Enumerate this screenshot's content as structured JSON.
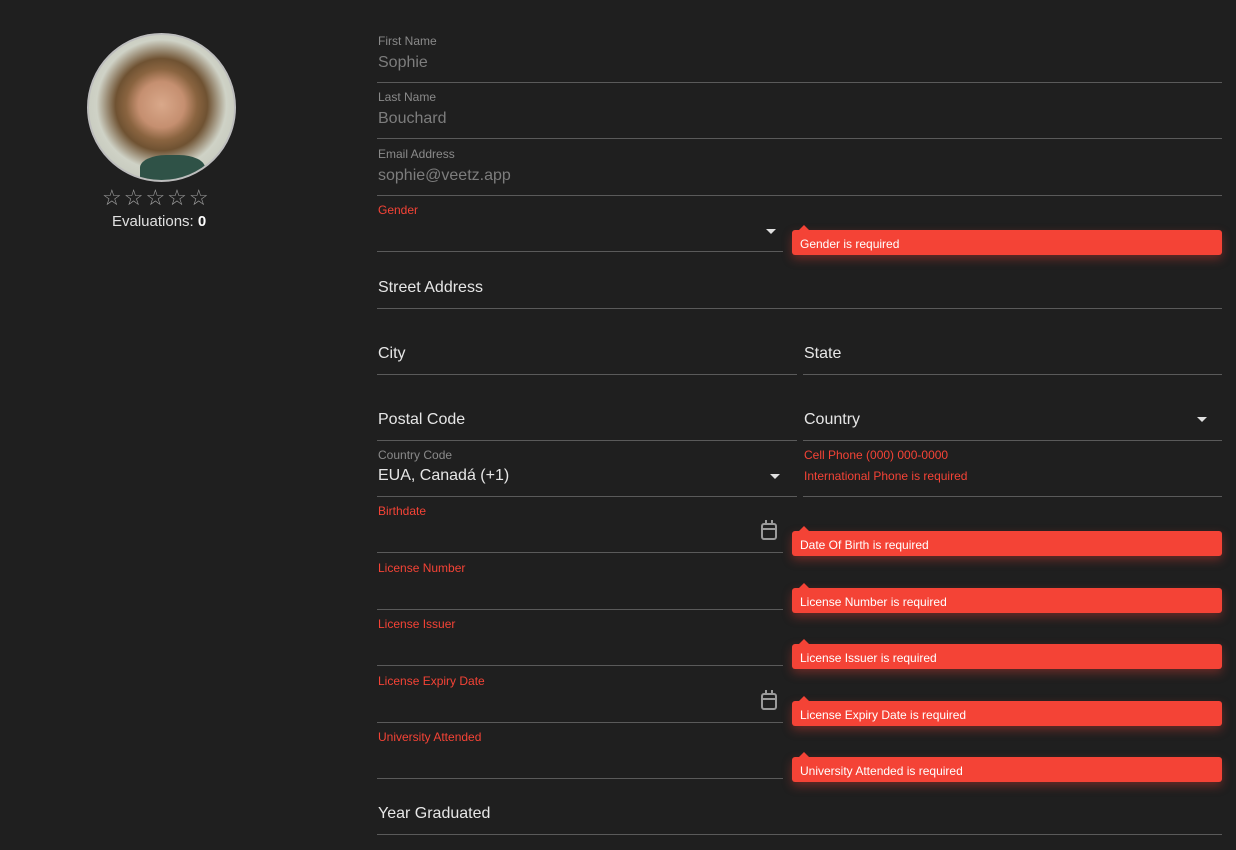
{
  "profile": {
    "avatar_alt": "Profile photo",
    "stars": "☆☆☆☆☆",
    "rating": 0,
    "evaluations_label": "Evaluations:",
    "evaluations_count": "0"
  },
  "form": {
    "first_name": {
      "label": "First Name",
      "value": "Sophie"
    },
    "last_name": {
      "label": "Last Name",
      "value": "Bouchard"
    },
    "email": {
      "label": "Email Address",
      "value": "sophie@veetz.app"
    },
    "gender": {
      "label": "Gender",
      "value": "",
      "error": "Gender is required"
    },
    "street": {
      "placeholder": "Street Address"
    },
    "city": {
      "placeholder": "City"
    },
    "state": {
      "placeholder": "State"
    },
    "postal": {
      "placeholder": "Postal Code"
    },
    "country": {
      "placeholder": "Country"
    },
    "country_code": {
      "label": "Country Code",
      "value": "EUA, Canadá (+1)"
    },
    "cell_phone": {
      "label": "Cell Phone (000) 000-0000",
      "error": "International Phone is required"
    },
    "birthdate": {
      "label": "Birthdate",
      "error": "Date Of Birth is required"
    },
    "license_number": {
      "label": "License Number",
      "error": "License Number is required"
    },
    "license_issuer": {
      "label": "License Issuer",
      "error": "License Issuer is required"
    },
    "license_expiry": {
      "label": "License Expiry Date",
      "error": "License Expiry Date is required"
    },
    "university": {
      "label": "University Attended",
      "error": "University Attended is required"
    },
    "year_graduated": {
      "placeholder": "Year Graduated"
    }
  },
  "colors": {
    "background": "#1f1f1f",
    "error": "#f44336"
  }
}
